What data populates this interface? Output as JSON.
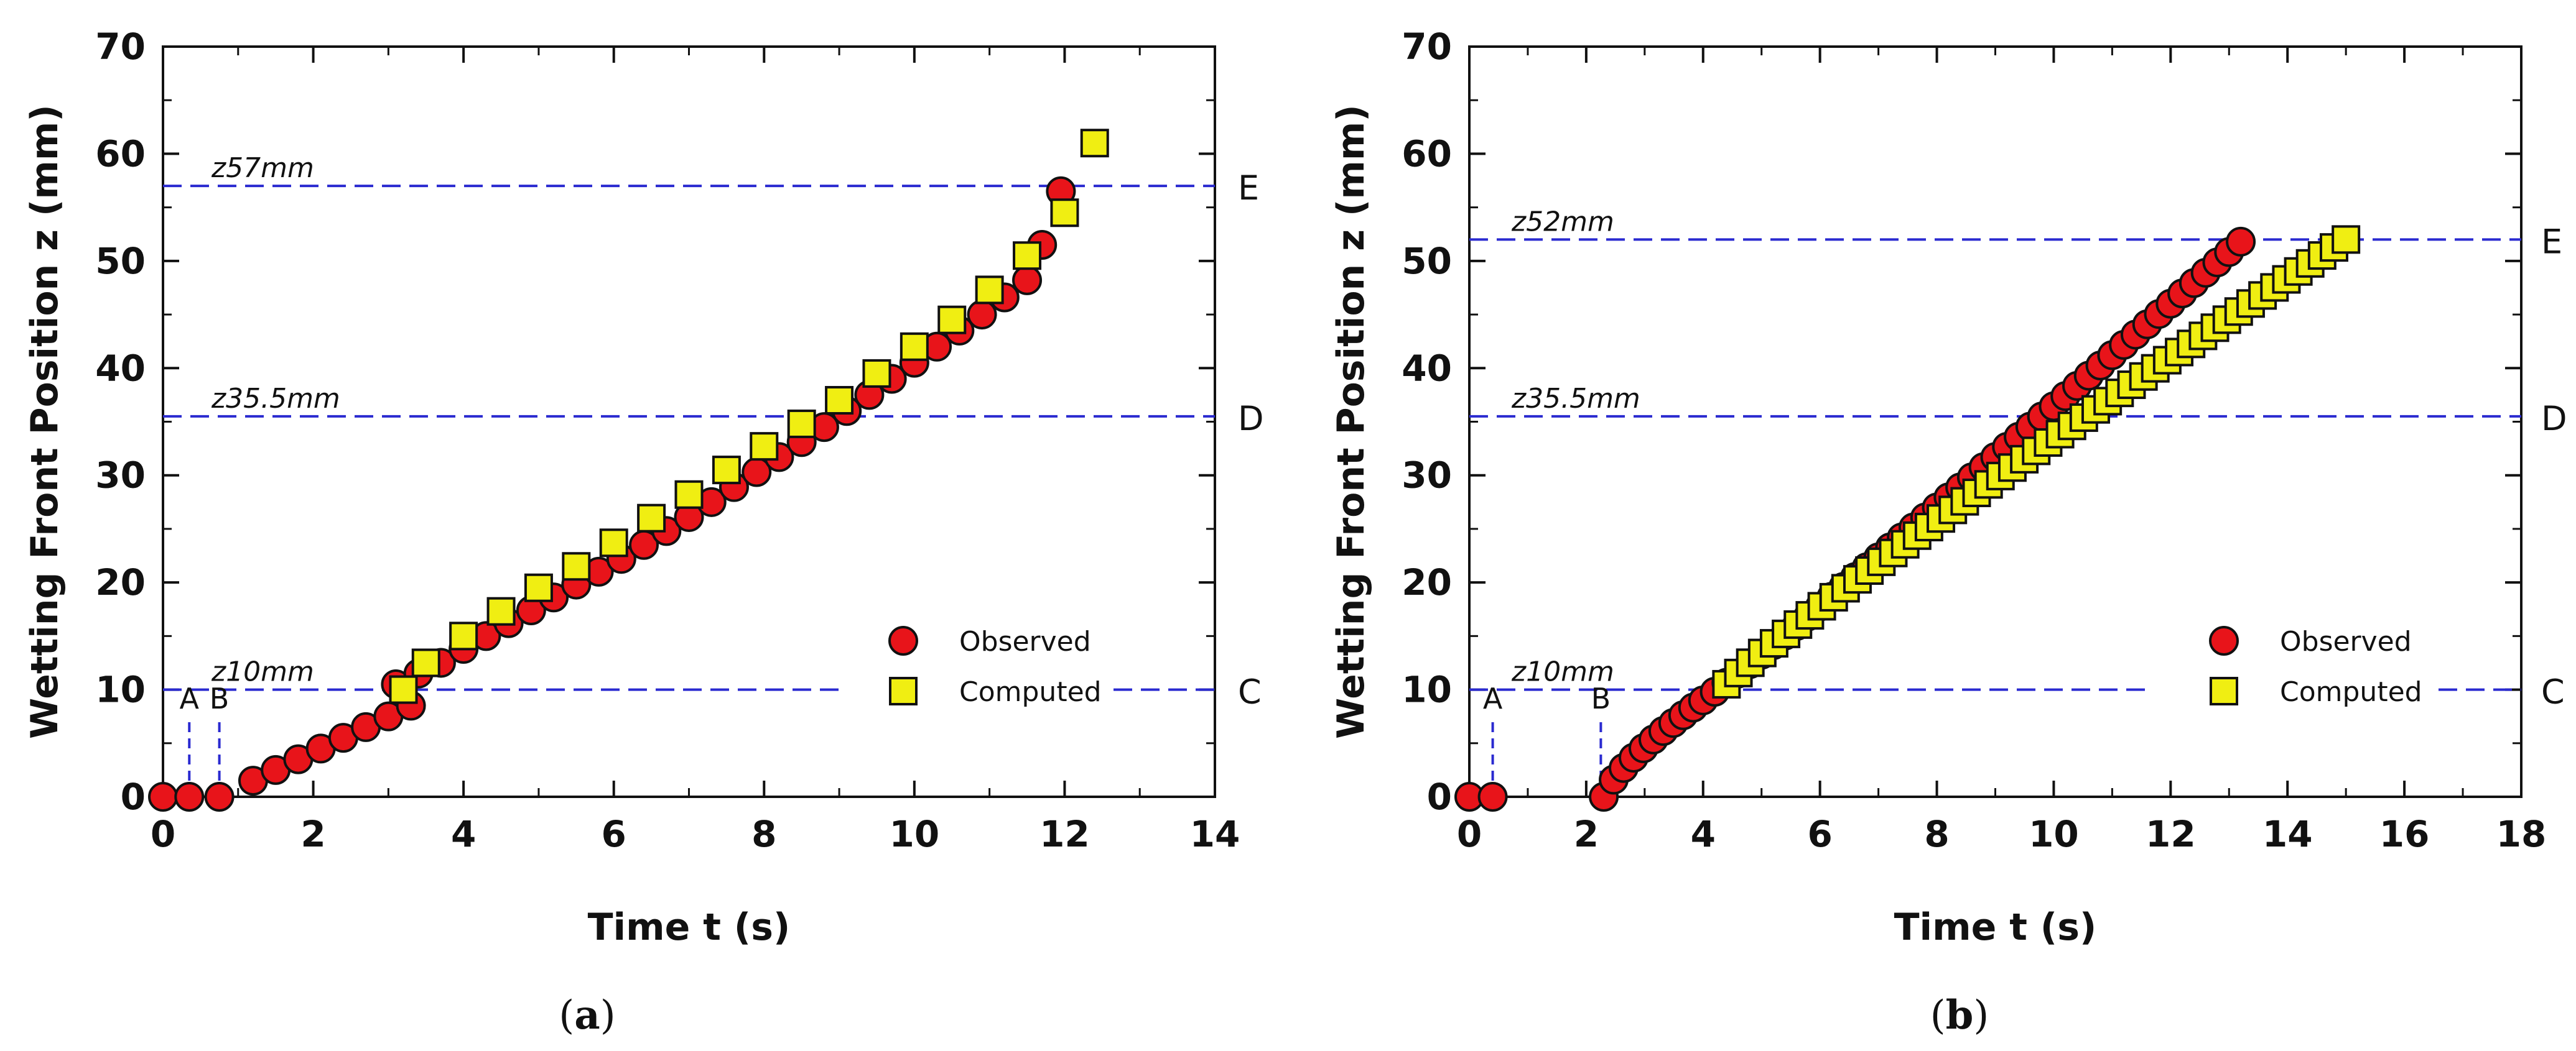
{
  "chart_data": [
    {
      "type": "scatter",
      "panel_label": "a",
      "xlabel": "Time  t (s)",
      "ylabel": "Wetting Front Position  z (mm)",
      "xlim": [
        0,
        14
      ],
      "ylim": [
        0,
        70
      ],
      "xticks": [
        0,
        2,
        4,
        6,
        8,
        10,
        12,
        14
      ],
      "yticks": [
        0,
        10,
        20,
        30,
        40,
        50,
        60,
        70
      ],
      "reference_lines": [
        {
          "label": "z10mm",
          "y": 10,
          "side_label": "C"
        },
        {
          "label": "z35.5mm",
          "y": 35.5,
          "side_label": "D"
        },
        {
          "label": "z57mm",
          "y": 57,
          "side_label": "E"
        }
      ],
      "markers": [
        {
          "label": "A",
          "x": 0.35
        },
        {
          "label": "B",
          "x": 0.75
        }
      ],
      "legend": {
        "position": "bottom-right",
        "entries": [
          "Observed",
          "Computed"
        ]
      },
      "series": [
        {
          "name": "Observed",
          "marker": "circle",
          "color": "#e8141a",
          "points": [
            [
              0,
              0
            ],
            [
              0.35,
              0
            ],
            [
              0.75,
              0
            ],
            [
              1.2,
              1.5
            ],
            [
              1.5,
              2.5
            ],
            [
              1.8,
              3.5
            ],
            [
              2.1,
              4.5
            ],
            [
              2.4,
              5.5
            ],
            [
              2.7,
              6.5
            ],
            [
              3.0,
              7.5
            ],
            [
              3.3,
              8.5
            ],
            [
              3.1,
              10.5
            ],
            [
              3.4,
              11.5
            ],
            [
              3.7,
              12.5
            ],
            [
              4.0,
              13.8
            ],
            [
              4.3,
              15
            ],
            [
              4.6,
              16.2
            ],
            [
              4.9,
              17.4
            ],
            [
              5.2,
              18.6
            ],
            [
              5.5,
              19.8
            ],
            [
              5.8,
              21
            ],
            [
              6.1,
              22.2
            ],
            [
              6.4,
              23.5
            ],
            [
              6.7,
              24.8
            ],
            [
              7.0,
              26.1
            ],
            [
              7.3,
              27.5
            ],
            [
              7.6,
              28.9
            ],
            [
              7.9,
              30.3
            ],
            [
              8.2,
              31.7
            ],
            [
              8.5,
              33.1
            ],
            [
              8.8,
              34.5
            ],
            [
              9.1,
              36
            ],
            [
              9.4,
              37.5
            ],
            [
              9.7,
              39
            ],
            [
              10.0,
              40.5
            ],
            [
              10.3,
              42
            ],
            [
              10.6,
              43.5
            ],
            [
              10.9,
              45
            ],
            [
              11.2,
              46.6
            ],
            [
              11.5,
              48.2
            ],
            [
              11.7,
              51.5
            ],
            [
              11.95,
              56.5
            ]
          ]
        },
        {
          "name": "Computed",
          "marker": "square",
          "color": "#f0ee12",
          "points": [
            [
              3.2,
              10
            ],
            [
              3.5,
              12.5
            ],
            [
              4.0,
              15
            ],
            [
              4.5,
              17.3
            ],
            [
              5.0,
              19.5
            ],
            [
              5.5,
              21.5
            ],
            [
              6.0,
              23.7
            ],
            [
              6.5,
              26
            ],
            [
              7.0,
              28.2
            ],
            [
              7.5,
              30.5
            ],
            [
              8.0,
              32.7
            ],
            [
              8.5,
              34.8
            ],
            [
              9.0,
              37
            ],
            [
              9.5,
              39.5
            ],
            [
              10.0,
              42
            ],
            [
              10.5,
              44.5
            ],
            [
              11.0,
              47.3
            ],
            [
              11.5,
              50.5
            ],
            [
              12.0,
              54.5
            ],
            [
              12.4,
              61
            ]
          ]
        }
      ]
    },
    {
      "type": "scatter",
      "panel_label": "b",
      "xlabel": "Time  t (s)",
      "ylabel": "Wetting Front Position  z (mm)",
      "xlim": [
        0,
        18
      ],
      "ylim": [
        0,
        70
      ],
      "xticks": [
        0,
        2,
        4,
        6,
        8,
        10,
        12,
        14,
        16,
        18
      ],
      "yticks": [
        0,
        10,
        20,
        30,
        40,
        50,
        60,
        70
      ],
      "reference_lines": [
        {
          "label": "z10mm",
          "y": 10,
          "side_label": "C"
        },
        {
          "label": "z35.5mm",
          "y": 35.5,
          "side_label": "D"
        },
        {
          "label": "z52mm",
          "y": 52,
          "side_label": "E"
        }
      ],
      "markers": [
        {
          "label": "A",
          "x": 0.4
        },
        {
          "label": "B",
          "x": 2.25
        }
      ],
      "legend": {
        "position": "bottom-right",
        "entries": [
          "Observed",
          "Computed"
        ]
      },
      "series": [
        {
          "name": "Observed",
          "marker": "circle",
          "color": "#e8141a",
          "points": "generate: (0,0),(0.4,0), then dense track from (2.3,0) rising to (4,9), then ~linear to (13.2,51.8)"
        },
        {
          "name": "Computed",
          "marker": "square",
          "color": "#f0ee12",
          "points": "generate: dense track from (4.4,10.5) to (15.0,52)"
        }
      ]
    }
  ]
}
